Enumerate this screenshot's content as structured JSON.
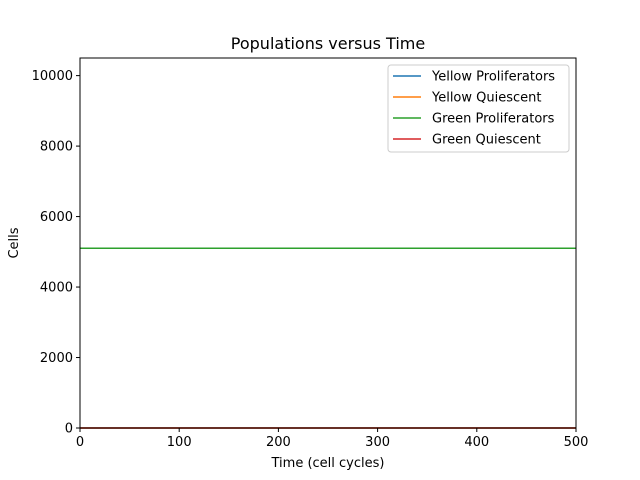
{
  "chart_data": {
    "type": "line",
    "title": "Populations versus Time",
    "xlabel": "Time (cell cycles)",
    "ylabel": "Cells",
    "xlim": [
      0,
      500
    ],
    "ylim": [
      0,
      10500
    ],
    "xticks": [
      0,
      100,
      200,
      300,
      400,
      500
    ],
    "yticks": [
      0,
      2000,
      4000,
      6000,
      8000,
      10000
    ],
    "grid": false,
    "legend_position": "top-right",
    "series": [
      {
        "name": "Yellow Proliferators",
        "color": "#1f77b4",
        "x": [
          0,
          500
        ],
        "y": [
          0,
          0
        ]
      },
      {
        "name": "Yellow Quiescent",
        "color": "#ff7f0e",
        "x": [
          0,
          500
        ],
        "y": [
          0,
          0
        ]
      },
      {
        "name": "Green Proliferators",
        "color": "#2ca02c",
        "x": [
          0,
          500
        ],
        "y": [
          5100,
          5100
        ]
      },
      {
        "name": "Green Quiescent",
        "color": "#d62728",
        "x": [
          0,
          500
        ],
        "y": [
          0,
          0
        ]
      }
    ]
  }
}
